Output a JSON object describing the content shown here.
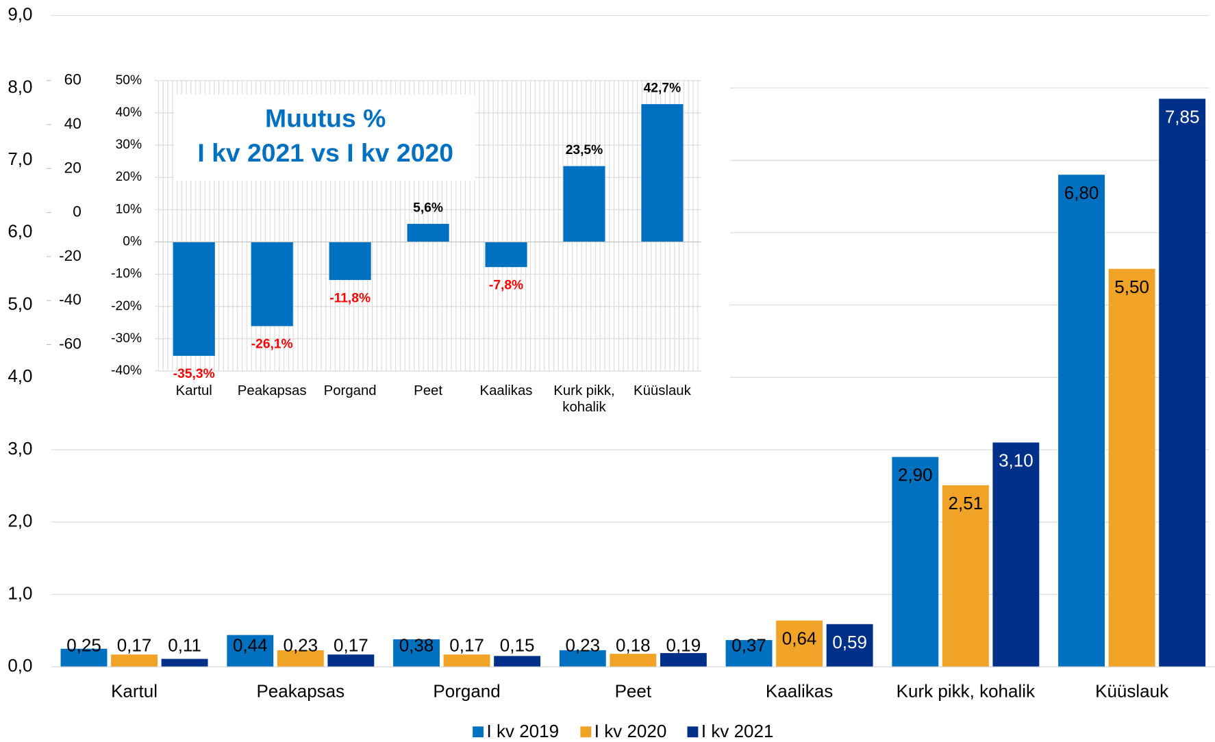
{
  "chart_data": [
    {
      "type": "bar",
      "categories": [
        "Kartul",
        "Peakapsas",
        "Porgand",
        "Peet",
        "Kaalikas",
        "Kurk pikk, kohalik",
        "Küüslauk"
      ],
      "series": [
        {
          "name": "I kv 2019",
          "color": "#0070c0",
          "label_color": "#000000",
          "values": [
            0.25,
            0.44,
            0.38,
            0.23,
            0.37,
            2.9,
            6.8
          ],
          "value_labels": [
            "0,25",
            "0,44",
            "0,38",
            "0,23",
            "0,37",
            "2,90",
            "6,80"
          ]
        },
        {
          "name": "I kv 2020",
          "color": "#f0a326",
          "label_color": "#000000",
          "values": [
            0.17,
            0.23,
            0.17,
            0.18,
            0.64,
            2.51,
            5.5
          ],
          "value_labels": [
            "0,17",
            "0,23",
            "0,17",
            "0,18",
            "0,64",
            "2,51",
            "5,50"
          ]
        },
        {
          "name": "I kv 2021",
          "color": "#003087",
          "label_color": "#ffffff",
          "values": [
            0.11,
            0.17,
            0.15,
            0.19,
            0.59,
            3.1,
            7.85
          ],
          "value_labels": [
            "0,11",
            "0,17",
            "0,15",
            "0,19",
            "0,59",
            "3,10",
            "7,85"
          ]
        }
      ],
      "ylim": [
        0,
        9
      ],
      "yticks": [
        {
          "value": 0,
          "label": "0,0"
        },
        {
          "value": 1,
          "label": "1,0"
        },
        {
          "value": 2,
          "label": "2,0"
        },
        {
          "value": 3,
          "label": "3,0"
        },
        {
          "value": 4,
          "label": "4,0"
        },
        {
          "value": 5,
          "label": "5,0"
        },
        {
          "value": 6,
          "label": "6,0"
        },
        {
          "value": 7,
          "label": "7,0"
        },
        {
          "value": 8,
          "label": "8,0"
        },
        {
          "value": 9,
          "label": "9,0"
        }
      ],
      "grid": true,
      "legend": "bottom"
    },
    {
      "type": "bar",
      "title": [
        "Muutus %",
        "I kv 2021 vs I kv 2020"
      ],
      "categories": [
        "Kartul",
        "Peakapsas",
        "Porgand",
        "Peet",
        "Kaalikas",
        "Kurk pikk, kohalik",
        "Küüslauk"
      ],
      "values": [
        -35.3,
        -26.1,
        -11.8,
        5.6,
        -7.8,
        23.5,
        42.7
      ],
      "value_labels": [
        "-35,3%",
        "-26,1%",
        "-11,8%",
        "5,6%",
        "-7,8%",
        "23,5%",
        "42,7%"
      ],
      "color": "#0070c0",
      "value_label_colors": {
        "negative": "#ff0000",
        "positive": "#000000"
      },
      "ylim": [
        -40,
        50
      ],
      "yticks": [
        {
          "value": -40,
          "label": "-40%"
        },
        {
          "value": -30,
          "label": "-30%"
        },
        {
          "value": -20,
          "label": "-20%"
        },
        {
          "value": -10,
          "label": "-10%"
        },
        {
          "value": 0,
          "label": "0%"
        },
        {
          "value": 10,
          "label": "10%"
        },
        {
          "value": 20,
          "label": "20%"
        },
        {
          "value": 30,
          "label": "30%"
        },
        {
          "value": 40,
          "label": "40%"
        },
        {
          "value": 50,
          "label": "50%"
        }
      ],
      "y2lim": [
        -72,
        60
      ],
      "y2ticks": [
        -60,
        -40,
        -20,
        0,
        20,
        40,
        60
      ],
      "grid": true
    }
  ]
}
